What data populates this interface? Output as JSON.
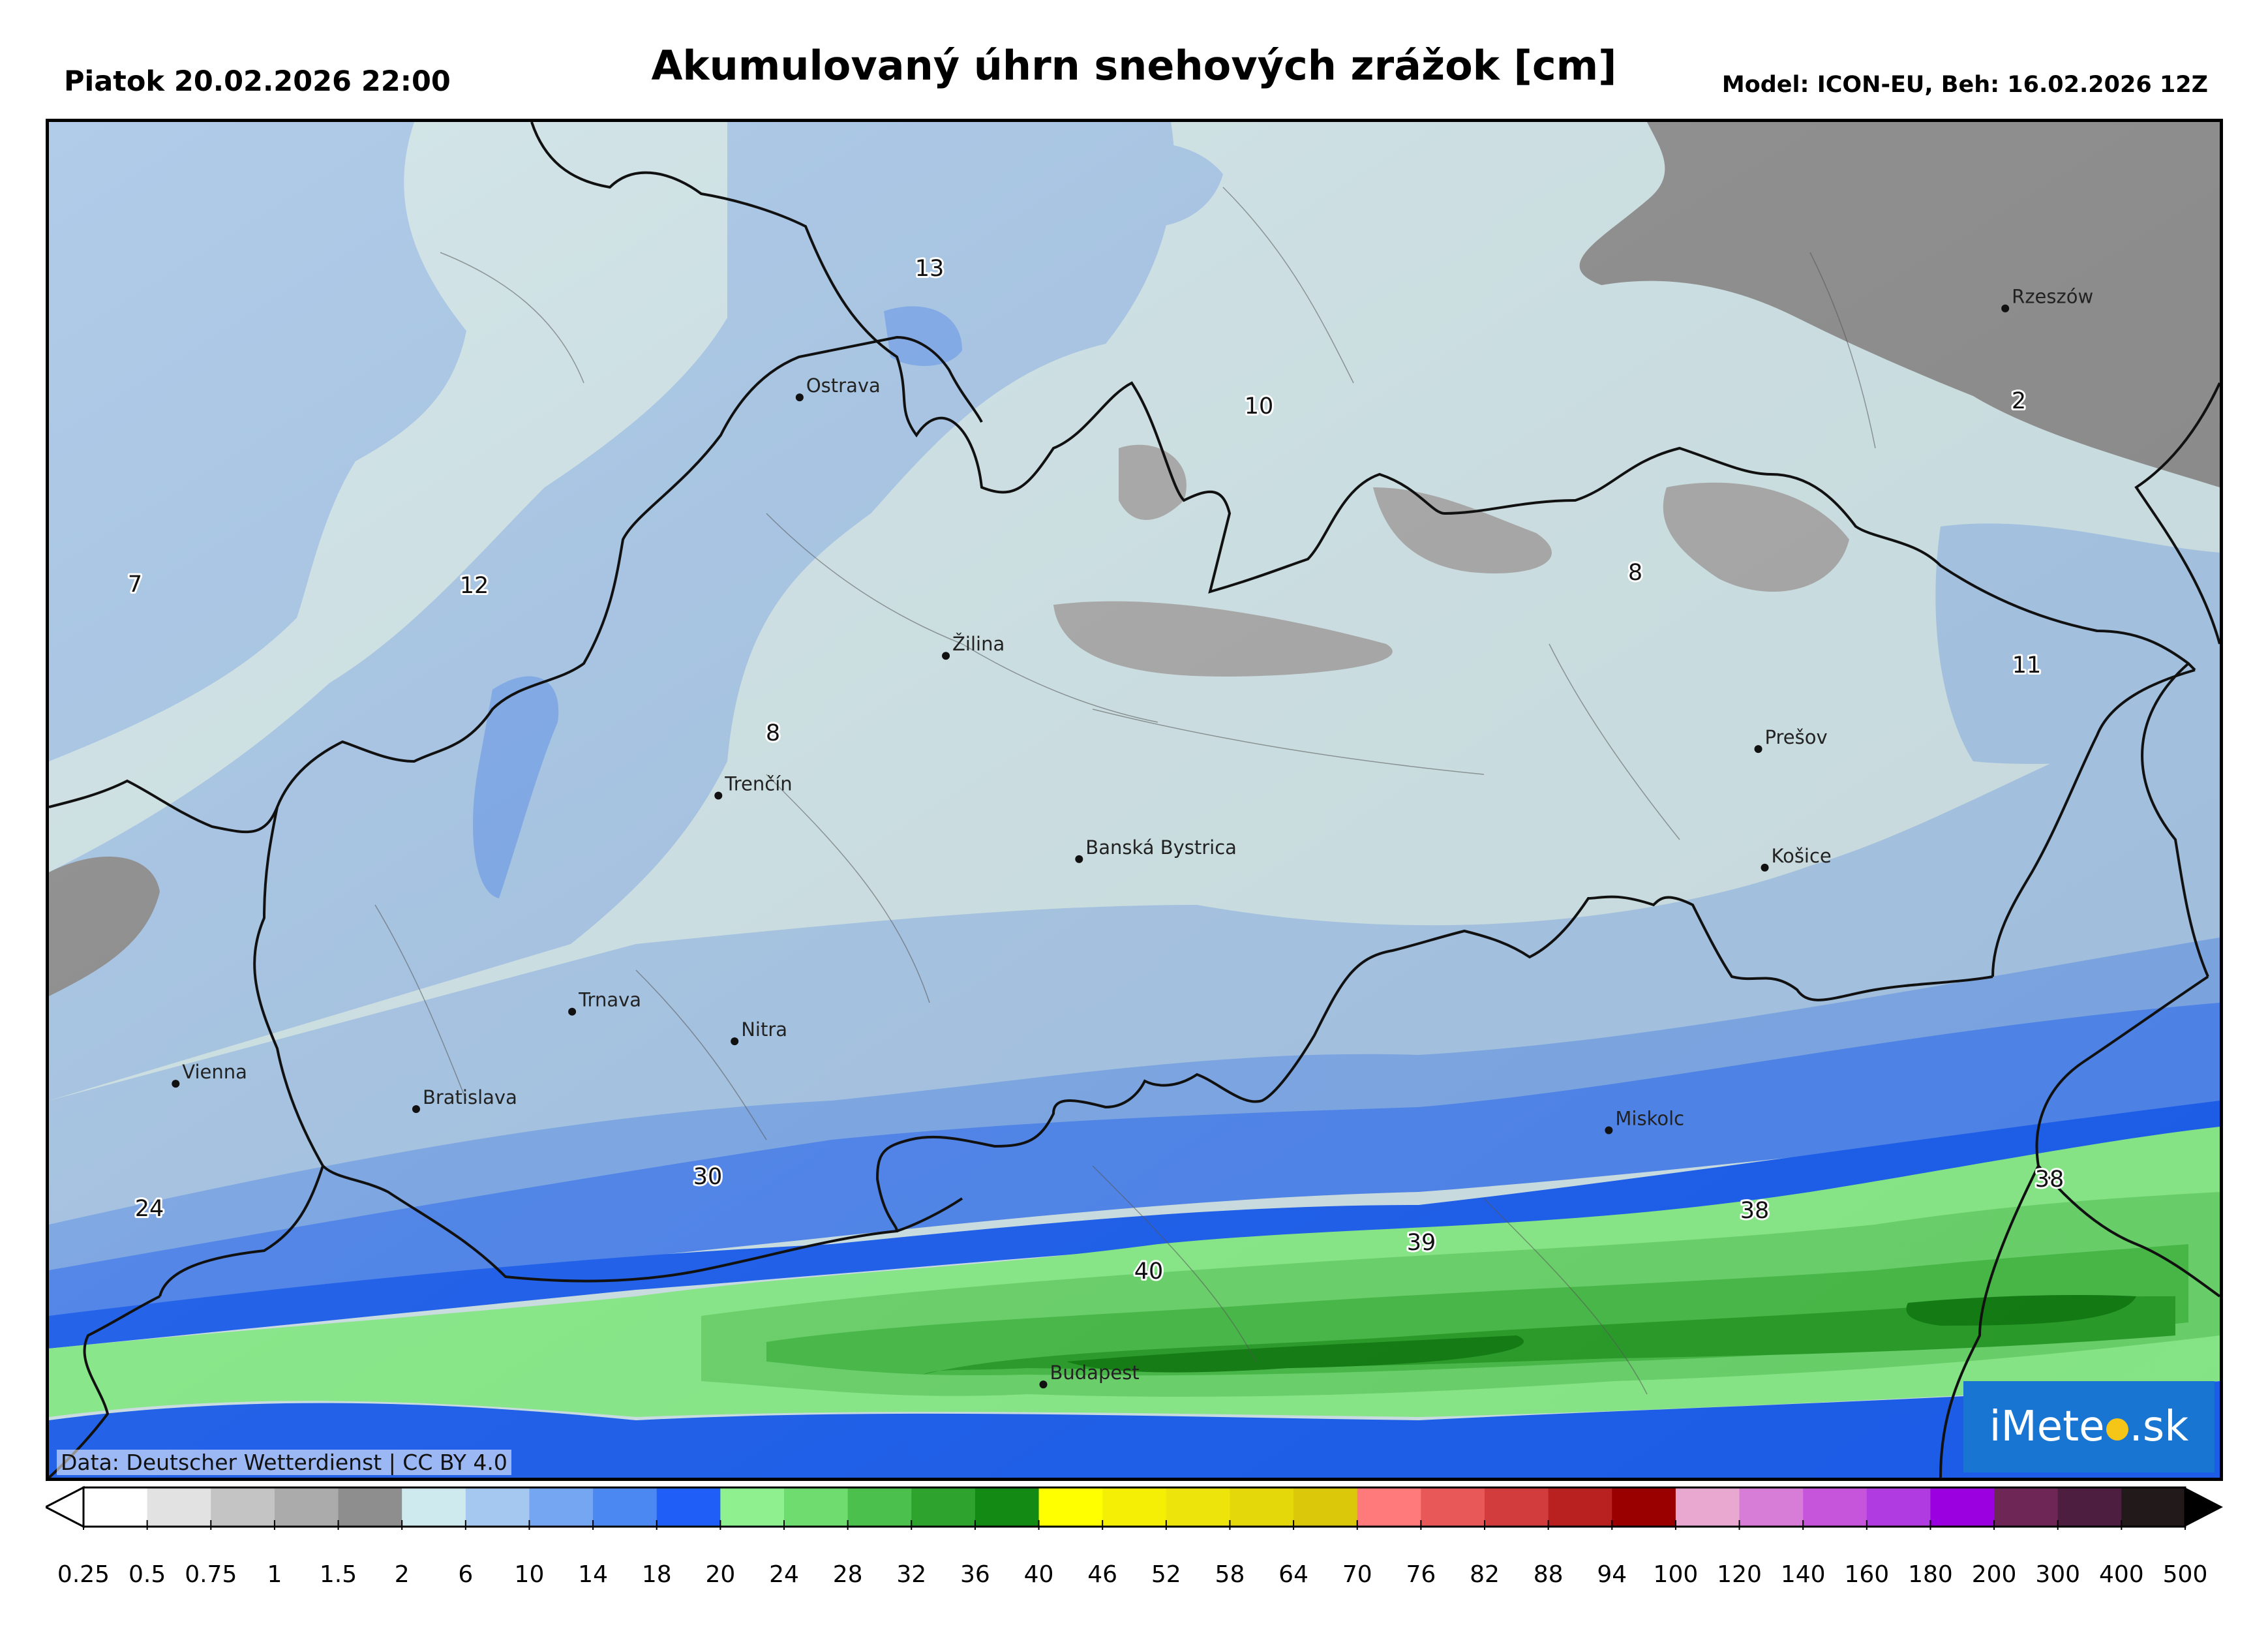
{
  "header": {
    "valid_time": "Piatok 20.02.2026 22:00",
    "title": "Akumulovaný úhrn snehových zrážok [cm]",
    "model_info": "Model: ICON-EU, Beh: 16.02.2026 12Z"
  },
  "map": {
    "cities": [
      {
        "name": "Ostrava",
        "lon": 18.29,
        "lat": 49.83
      },
      {
        "name": "Rzeszów",
        "lon": 22.0,
        "lat": 50.04
      },
      {
        "name": "Žilina",
        "lon": 18.74,
        "lat": 49.22
      },
      {
        "name": "Prešov",
        "lon": 21.24,
        "lat": 49.0
      },
      {
        "name": "Trenčín",
        "lon": 18.04,
        "lat": 48.89
      },
      {
        "name": "Košice",
        "lon": 21.26,
        "lat": 48.72
      },
      {
        "name": "Banská Bystrica",
        "lon": 19.15,
        "lat": 48.74
      },
      {
        "name": "Trnava",
        "lon": 17.59,
        "lat": 48.38
      },
      {
        "name": "Nitra",
        "lon": 18.09,
        "lat": 48.31
      },
      {
        "name": "Vienna",
        "lon": 16.37,
        "lat": 48.21
      },
      {
        "name": "Bratislava",
        "lon": 17.11,
        "lat": 48.15
      },
      {
        "name": "Miskolc",
        "lon": 20.78,
        "lat": 48.1
      },
      {
        "name": "Budapest",
        "lon": 19.04,
        "lat": 47.5
      }
    ],
    "value_labels": [
      "13",
      "10",
      "2",
      "7",
      "12",
      "8",
      "8",
      "11",
      "30",
      "24",
      "39",
      "40",
      "38",
      "38"
    ],
    "data_credit": "Data: Deutscher Wetterdienst | CC BY 4.0",
    "logo_text_left": "iMete",
    "logo_text_right": ".sk"
  },
  "colorbar": {
    "ticks": [
      "0.25",
      "0.5",
      "0.75",
      "1",
      "1.5",
      "2",
      "6",
      "10",
      "14",
      "18",
      "20",
      "24",
      "28",
      "32",
      "36",
      "40",
      "46",
      "52",
      "58",
      "64",
      "70",
      "76",
      "82",
      "88",
      "94",
      "100",
      "120",
      "140",
      "160",
      "180",
      "200",
      "300",
      "400",
      "500"
    ],
    "colors": [
      "#ffffff",
      "#e2e2e2",
      "#c4c4c4",
      "#ababab",
      "#8e8e8e",
      "#cfeaee",
      "#a4c8f0",
      "#74a6f2",
      "#4c88f2",
      "#1f5ff7",
      "#8ef08e",
      "#6fdc6f",
      "#4cc04c",
      "#2ea42e",
      "#138a13",
      "#ffff00",
      "#f5ef05",
      "#ece40a",
      "#e4d80a",
      "#dcc80a",
      "#ff7a7a",
      "#e85858",
      "#d33c3c",
      "#b92020",
      "#9a0000",
      "#e8a8d0",
      "#d77dd7",
      "#c655dc",
      "#b03be0",
      "#9a00e0",
      "#6e2656",
      "#4e1e40",
      "#221a1a"
    ]
  }
}
